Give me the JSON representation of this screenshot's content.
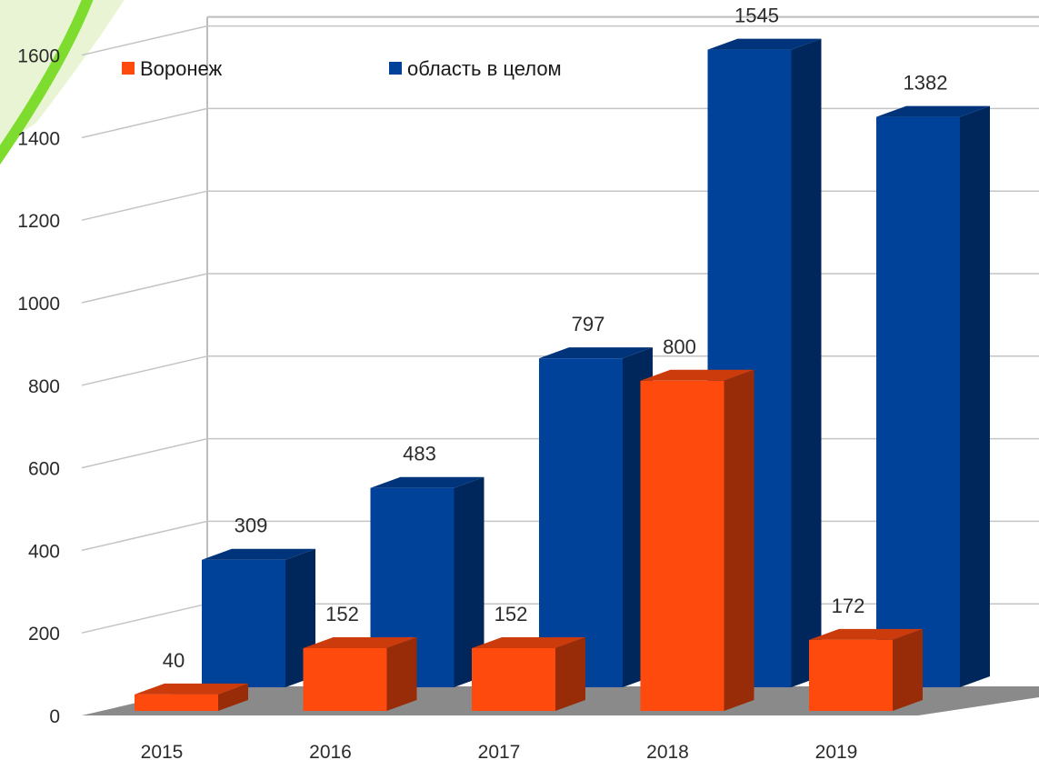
{
  "chart_data": {
    "type": "bar",
    "categories": [
      "2015",
      "2016",
      "2017",
      "2018",
      "2019"
    ],
    "series": [
      {
        "name": "Воронеж",
        "values": [
          40,
          152,
          152,
          800,
          172
        ],
        "color": "#ff4a0e"
      },
      {
        "name": "область в целом",
        "values": [
          309,
          483,
          797,
          1545,
          1382
        ],
        "color": "#004199"
      }
    ],
    "y_ticks": [
      "0",
      "200",
      "400",
      "600",
      "800",
      "1000",
      "1200",
      "1400",
      "1600"
    ],
    "ylim": [
      0,
      1600
    ],
    "grid": true,
    "legend_position": "top",
    "style": "3d"
  },
  "decoration": {
    "corner_badge_colors": [
      "#7ddc2e",
      "#e9f4d4"
    ]
  }
}
